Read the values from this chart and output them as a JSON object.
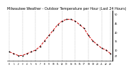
{
  "title": "Milwaukee Weather - Outdoor Temperature per Hour (Last 24 Hours)",
  "hours": [
    0,
    1,
    2,
    3,
    4,
    5,
    6,
    7,
    8,
    9,
    10,
    11,
    12,
    13,
    14,
    15,
    16,
    17,
    18,
    19,
    20,
    21,
    22,
    23
  ],
  "temps": [
    29,
    28,
    27,
    27,
    28,
    29,
    30,
    32,
    35,
    38,
    41,
    44,
    46,
    47,
    47,
    46,
    44,
    42,
    38,
    35,
    33,
    31,
    30,
    28
  ],
  "line_color": "#cc0000",
  "marker_color": "#000000",
  "bg_color": "#ffffff",
  "grid_color": "#888888",
  "title_color": "#000000",
  "ylim": [
    24,
    52
  ],
  "ytick_vals": [
    27,
    30,
    35,
    40,
    45,
    50
  ],
  "xtick_step": 1,
  "title_fontsize": 3.5,
  "tick_fontsize": 2.2,
  "ytick_fontsize": 2.5,
  "linewidth": 0.7,
  "markersize": 2.0,
  "grid_linewidth": 0.3,
  "grid_positions": [
    0,
    3,
    6,
    9,
    12,
    15,
    18,
    21,
    23
  ]
}
